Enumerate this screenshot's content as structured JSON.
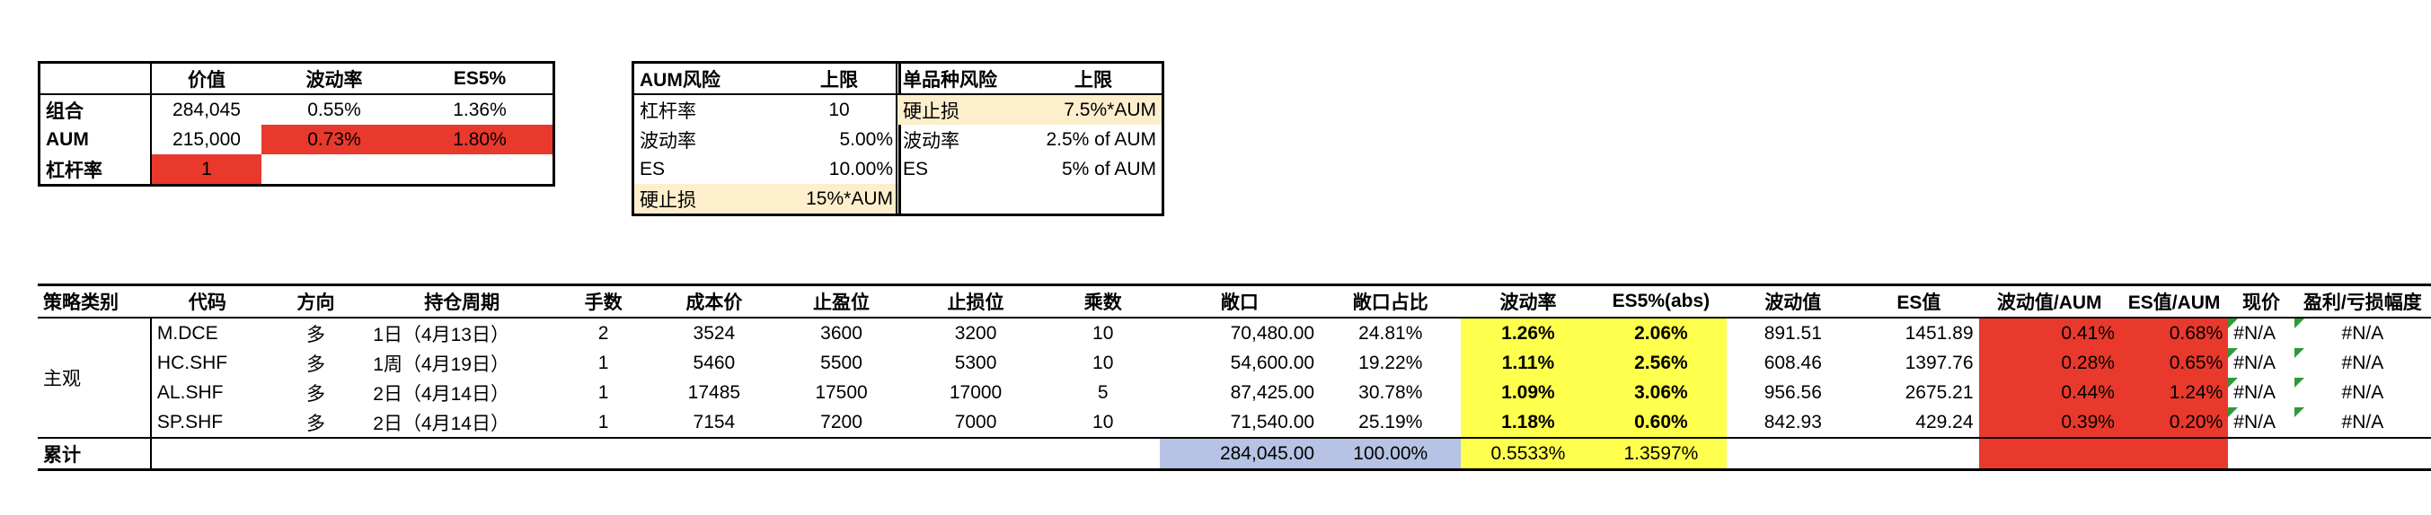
{
  "summary": {
    "headers": [
      "",
      "价值",
      "波动率",
      "ES5%"
    ],
    "rows": [
      {
        "label": "组合",
        "value": "284,045",
        "vol": "0.55%",
        "es": "1.36%"
      },
      {
        "label": "AUM",
        "value": "215,000",
        "vol": "0.73%",
        "es": "1.80%"
      },
      {
        "label": "杠杆率",
        "value": "1",
        "vol": "",
        "es": ""
      }
    ]
  },
  "aum_limits": {
    "headers": [
      "AUM风险",
      "上限"
    ],
    "rows": [
      {
        "label": "杠杆率",
        "limit": "10"
      },
      {
        "label": "波动率",
        "limit": "5.00%"
      },
      {
        "label": "ES",
        "limit": "10.00%"
      },
      {
        "label": "硬止损",
        "limit": "15%*AUM"
      }
    ]
  },
  "single_limits": {
    "headers": [
      "单品种风险",
      "上限"
    ],
    "rows": [
      {
        "label": "硬止损",
        "limit": "7.5%*AUM"
      },
      {
        "label": "波动率",
        "limit": "2.5% of AUM"
      },
      {
        "label": "ES",
        "limit": "5% of AUM"
      }
    ]
  },
  "main": {
    "headers": [
      "策略类别",
      "代码",
      "方向",
      "持仓周期",
      "手数",
      "成本价",
      "止盈位",
      "止损位",
      "乘数",
      "敞口",
      "敞口占比",
      "波动率",
      "ES5%(abs)",
      "波动值",
      "ES值",
      "波动值/AUM",
      "ES值/AUM",
      "现价",
      "盈利/亏损幅度"
    ],
    "category": "主观",
    "rows": [
      {
        "code": "M.DCE",
        "dir": "多",
        "period": "1日（4月13日）",
        "lots": "2",
        "cost": "3524",
        "tp": "3600",
        "sl": "3200",
        "mult": "10",
        "exposure": "70,480.00",
        "share": "24.81%",
        "vol": "1.26%",
        "es": "2.06%",
        "volv": "891.51",
        "esv": "1451.89",
        "volaum": "0.41%",
        "esaum": "0.68%",
        "price": "#N/A",
        "pnl": "#N/A"
      },
      {
        "code": "HC.SHF",
        "dir": "多",
        "period": "1周（4月19日）",
        "lots": "1",
        "cost": "5460",
        "tp": "5500",
        "sl": "5300",
        "mult": "10",
        "exposure": "54,600.00",
        "share": "19.22%",
        "vol": "1.11%",
        "es": "2.56%",
        "volv": "608.46",
        "esv": "1397.76",
        "volaum": "0.28%",
        "esaum": "0.65%",
        "price": "#N/A",
        "pnl": "#N/A"
      },
      {
        "code": "AL.SHF",
        "dir": "多",
        "period": "2日（4月14日）",
        "lots": "1",
        "cost": "17485",
        "tp": "17500",
        "sl": "17000",
        "mult": "5",
        "exposure": "87,425.00",
        "share": "30.78%",
        "vol": "1.09%",
        "es": "3.06%",
        "volv": "956.56",
        "esv": "2675.21",
        "volaum": "0.44%",
        "esaum": "1.24%",
        "price": "#N/A",
        "pnl": "#N/A"
      },
      {
        "code": "SP.SHF",
        "dir": "多",
        "period": "2日（4月14日）",
        "lots": "1",
        "cost": "7154",
        "tp": "7200",
        "sl": "7000",
        "mult": "10",
        "exposure": "71,540.00",
        "share": "25.19%",
        "vol": "1.18%",
        "es": "0.60%",
        "volv": "842.93",
        "esv": "429.24",
        "volaum": "0.39%",
        "esaum": "0.20%",
        "price": "#N/A",
        "pnl": "#N/A"
      }
    ],
    "total": {
      "label": "累计",
      "exposure": "284,045.00",
      "share": "100.00%",
      "vol": "0.5533%",
      "es": "1.3597%"
    }
  },
  "colors": {
    "red": "#e8392c",
    "yellow": "#ffff4d",
    "cream": "#fdefcc",
    "blue": "#b6c3e4",
    "flag": "#2e9a3a"
  }
}
